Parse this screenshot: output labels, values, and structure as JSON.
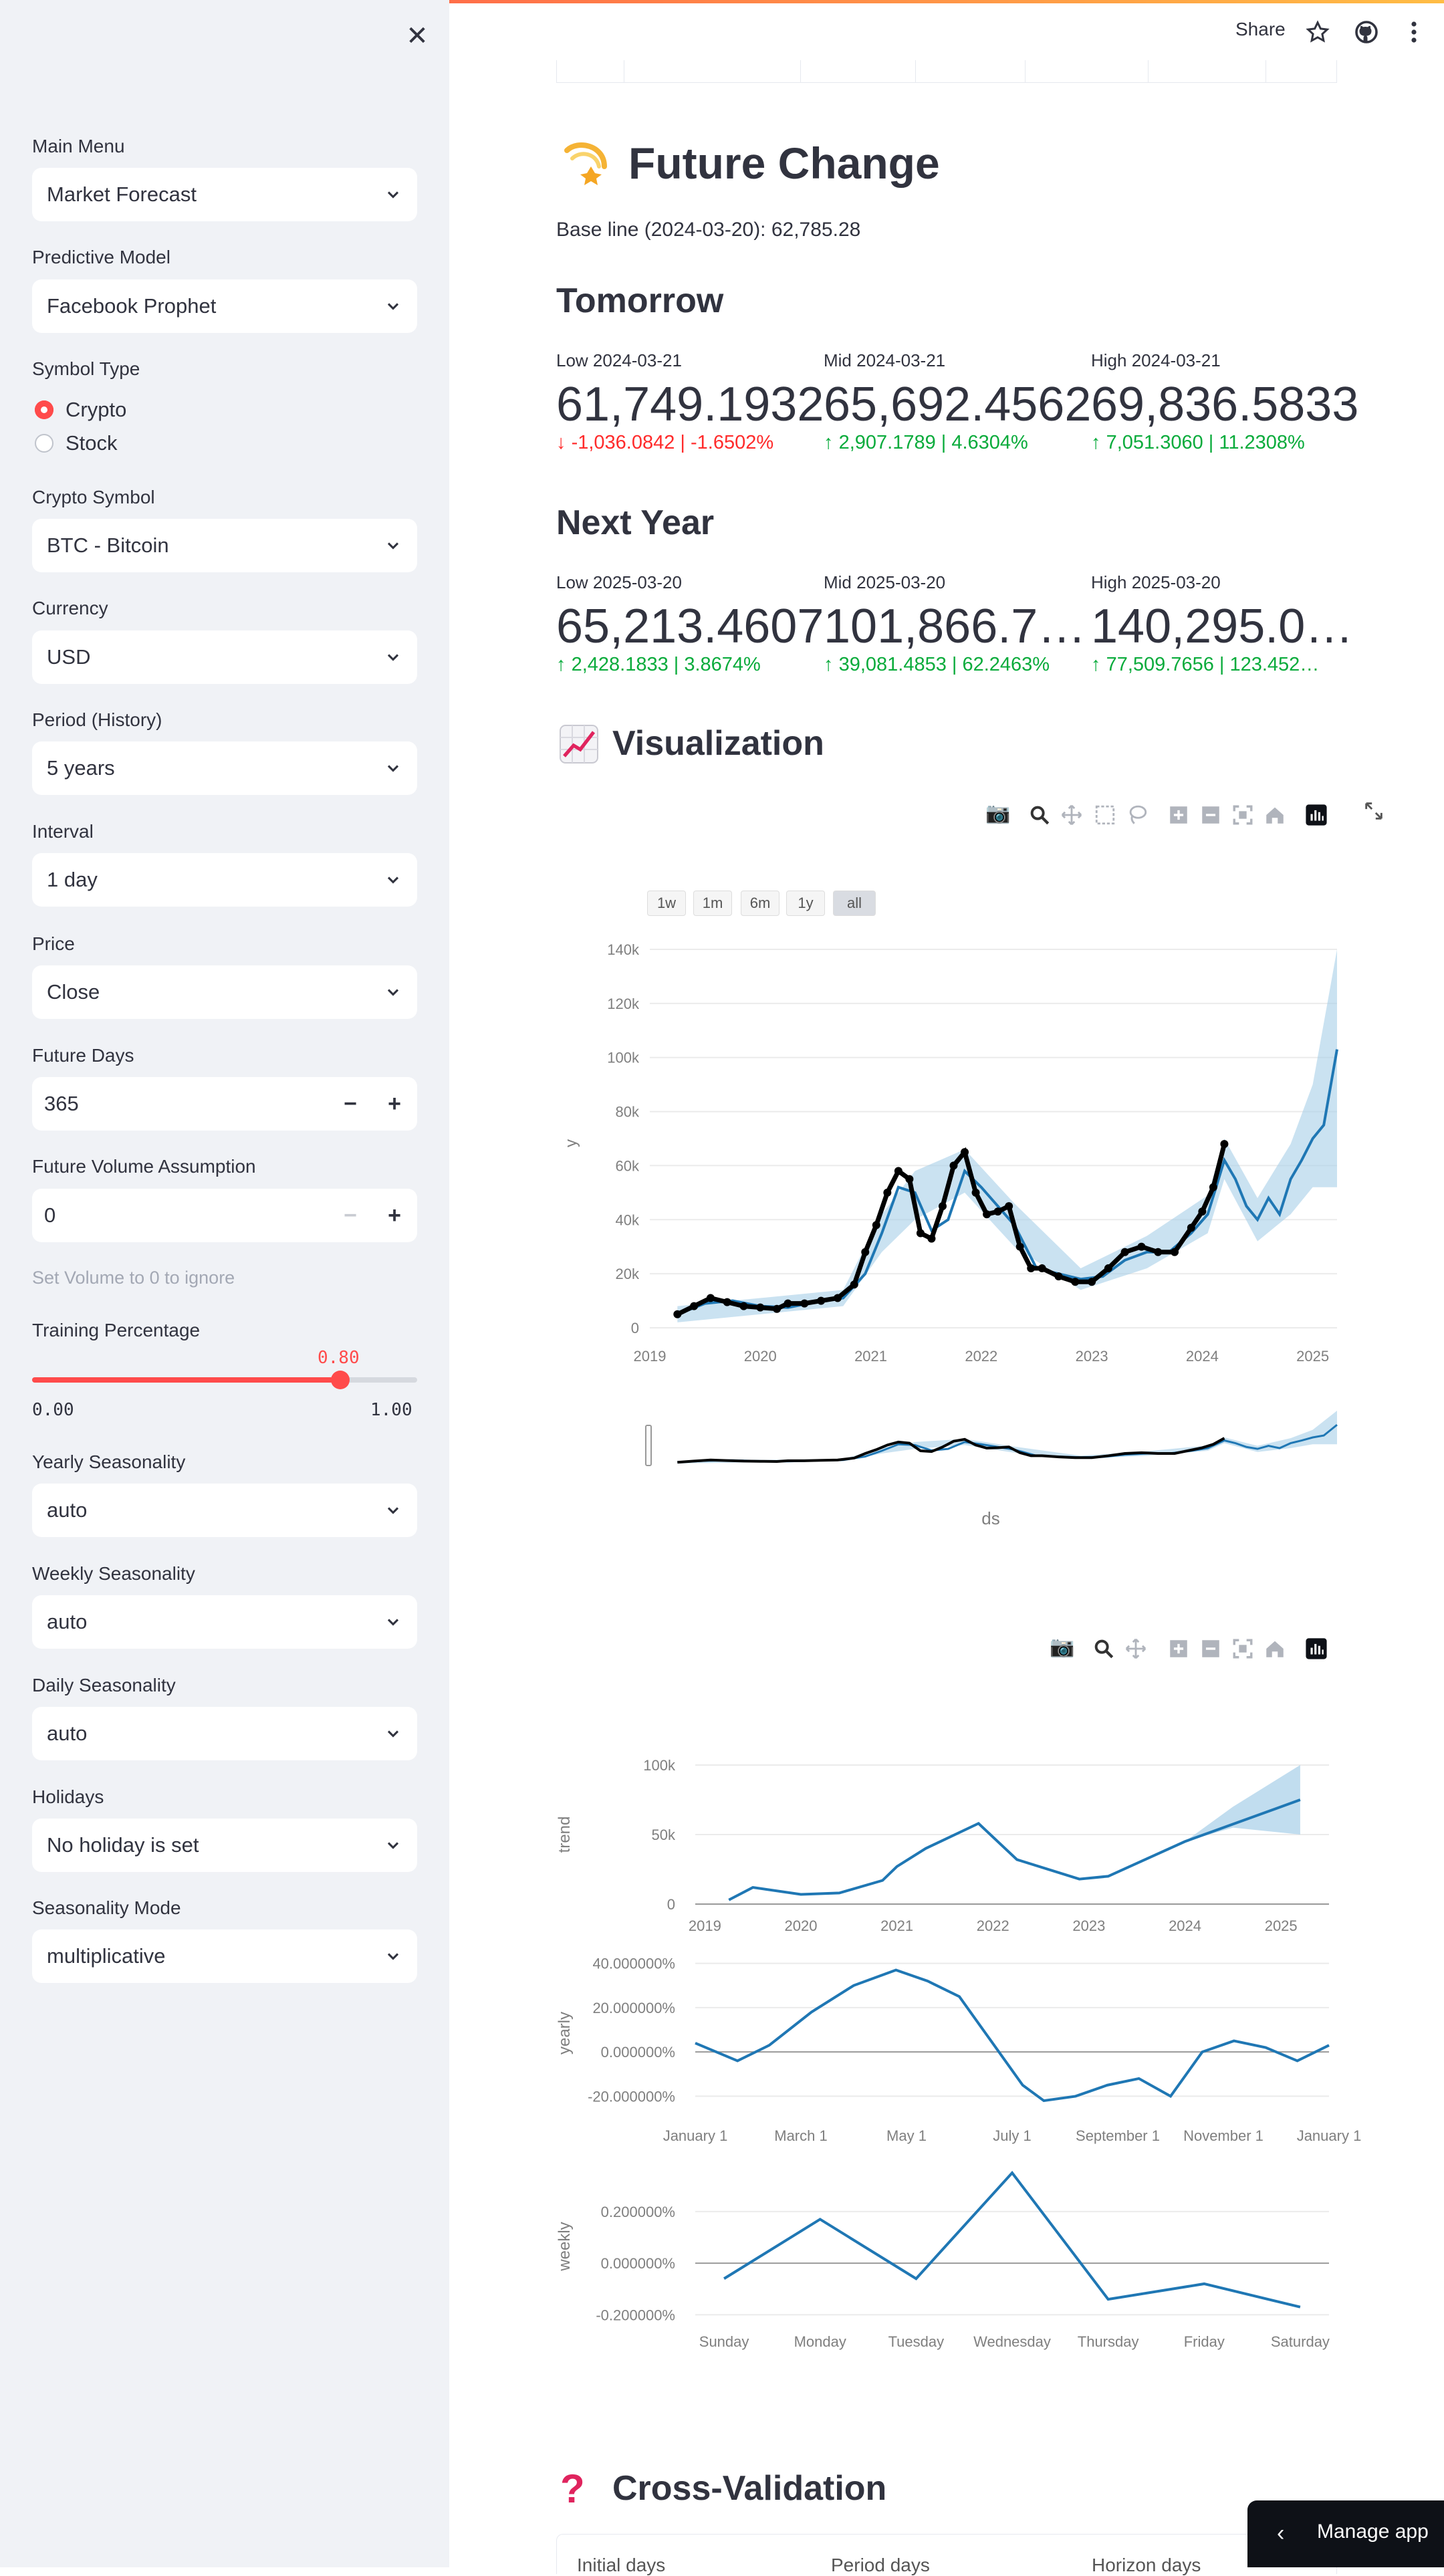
{
  "header": {
    "share_label": "Share"
  },
  "sidebar": {
    "main_menu": {
      "label": "Main Menu",
      "value": "Market Forecast"
    },
    "predictive_model": {
      "label": "Predictive Model",
      "value": "Facebook Prophet"
    },
    "symbol_type": {
      "label": "Symbol Type",
      "options": [
        "Crypto",
        "Stock"
      ],
      "selected": "Crypto"
    },
    "crypto_symbol": {
      "label": "Crypto Symbol",
      "value": "BTC - Bitcoin"
    },
    "currency": {
      "label": "Currency",
      "value": "USD"
    },
    "period": {
      "label": "Period (History)",
      "value": "5 years"
    },
    "interval": {
      "label": "Interval",
      "value": "1 day"
    },
    "price": {
      "label": "Price",
      "value": "Close"
    },
    "future_days": {
      "label": "Future Days",
      "value": "365"
    },
    "future_volume": {
      "label": "Future Volume Assumption",
      "value": "0",
      "hint": "Set Volume to 0 to ignore"
    },
    "training_pct": {
      "label": "Training Percentage",
      "value": "0.80",
      "min": "0.00",
      "max": "1.00",
      "fraction": 0.8
    },
    "yearly_seasonality": {
      "label": "Yearly Seasonality",
      "value": "auto"
    },
    "weekly_seasonality": {
      "label": "Weekly Seasonality",
      "value": "auto"
    },
    "daily_seasonality": {
      "label": "Daily Seasonality",
      "value": "auto"
    },
    "holidays": {
      "label": "Holidays",
      "value": "No holiday is set"
    },
    "seasonality_mode": {
      "label": "Seasonality Mode",
      "value": "multiplicative"
    }
  },
  "future_change": {
    "title": "Future Change",
    "baseline": "Base line (2024-03-20): 62,785.28",
    "tomorrow": {
      "title": "Tomorrow",
      "metrics": [
        {
          "label": "Low 2024-03-21",
          "value": "61,749.1932",
          "delta": "-1,036.0842 | -1.6502%",
          "direction": "down"
        },
        {
          "label": "Mid 2024-03-21",
          "value": "65,692.4562",
          "delta": "2,907.1789 | 4.6304%",
          "direction": "up"
        },
        {
          "label": "High 2024-03-21",
          "value": "69,836.5833",
          "delta": "7,051.3060 | 11.2308%",
          "direction": "up"
        }
      ]
    },
    "next_year": {
      "title": "Next Year",
      "metrics": [
        {
          "label": "Low 2025-03-20",
          "value": "65,213.4607",
          "delta": "2,428.1833 | 3.8674%",
          "direction": "up"
        },
        {
          "label": "Mid 2025-03-20",
          "value": "101,866.7…",
          "delta": "39,081.4853 | 62.2463%",
          "direction": "up"
        },
        {
          "label": "High 2025-03-20",
          "value": "140,295.0…",
          "delta": "77,509.7656 | 123.452…",
          "direction": "up"
        }
      ]
    }
  },
  "visualization": {
    "title": "Visualization"
  },
  "cross_validation": {
    "title": "Cross-Validation",
    "columns": [
      "Initial days",
      "Period days",
      "Horizon days"
    ]
  },
  "manage_app": {
    "label": "Manage app"
  },
  "colors": {
    "accent": "#ff4b4b",
    "up": "#09ab3b",
    "down": "#ff2b2b",
    "series": "#1f77b4",
    "band": "#a6cfe8",
    "actual": "#000000"
  },
  "chart_data": [
    {
      "type": "line",
      "title": "",
      "xlabel": "ds",
      "ylabel": "y",
      "range_buttons": [
        "1w",
        "1m",
        "6m",
        "1y",
        "all"
      ],
      "range_selected": "all",
      "x_ticks": [
        "2019",
        "2020",
        "2021",
        "2022",
        "2023",
        "2024",
        "2025"
      ],
      "y_ticks": [
        "0",
        "20k",
        "40k",
        "60k",
        "80k",
        "100k",
        "120k",
        "140k"
      ],
      "ylim": [
        0,
        140000
      ],
      "xlim": [
        2019.0,
        2025.22
      ],
      "series": [
        {
          "name": "",
          "kind": "actual_points",
          "x": [
            2019.25,
            2019.4,
            2019.55,
            2019.7,
            2019.85,
            2020.0,
            2020.15,
            2020.25,
            2020.4,
            2020.55,
            2020.7,
            2020.85,
            2020.95,
            2021.05,
            2021.15,
            2021.25,
            2021.35,
            2021.45,
            2021.55,
            2021.65,
            2021.75,
            2021.85,
            2021.95,
            2022.05,
            2022.15,
            2022.25,
            2022.35,
            2022.45,
            2022.55,
            2022.7,
            2022.85,
            2023.0,
            2023.15,
            2023.3,
            2023.45,
            2023.6,
            2023.75,
            2023.9,
            2024.0,
            2024.1,
            2024.2
          ],
          "y": [
            5000,
            8000,
            11000,
            9500,
            8000,
            7500,
            7000,
            9000,
            9000,
            10000,
            11000,
            16000,
            28000,
            38000,
            50000,
            58000,
            55000,
            35000,
            33000,
            45000,
            60000,
            65000,
            50000,
            42000,
            43000,
            45000,
            30000,
            22000,
            22000,
            19000,
            17000,
            17000,
            22000,
            28000,
            30000,
            28000,
            28000,
            37000,
            43000,
            52000,
            68000
          ]
        },
        {
          "name": "",
          "kind": "forecast_mid",
          "x": [
            2019.25,
            2019.5,
            2019.75,
            2020.0,
            2020.25,
            2020.5,
            2020.75,
            2020.95,
            2021.1,
            2021.25,
            2021.4,
            2021.55,
            2021.7,
            2021.85,
            2022.0,
            2022.15,
            2022.3,
            2022.5,
            2022.7,
            2022.9,
            2023.1,
            2023.3,
            2023.5,
            2023.7,
            2023.9,
            2024.05,
            2024.2,
            2024.3,
            2024.4,
            2024.5,
            2024.6,
            2024.7,
            2024.8,
            2024.9,
            2025.0,
            2025.1,
            2025.22
          ],
          "y": [
            5000,
            9000,
            10000,
            8000,
            7500,
            9500,
            11000,
            20000,
            35000,
            52000,
            50000,
            36000,
            40000,
            58000,
            52000,
            45000,
            38000,
            22000,
            20000,
            18000,
            19000,
            25000,
            28000,
            28000,
            35000,
            42000,
            62000,
            55000,
            45000,
            40000,
            48000,
            42000,
            55000,
            62000,
            70000,
            75000,
            103000
          ]
        },
        {
          "name": "",
          "kind": "forecast_band",
          "x": [
            2019.25,
            2020.0,
            2020.75,
            2021.1,
            2021.4,
            2021.85,
            2022.3,
            2022.9,
            2023.5,
            2024.05,
            2024.2,
            2024.5,
            2024.8,
            2025.0,
            2025.22
          ],
          "lower": [
            2000,
            5000,
            8000,
            28000,
            40000,
            50000,
            30000,
            14000,
            22000,
            35000,
            55000,
            32000,
            42000,
            52000,
            52000
          ],
          "upper": [
            8000,
            11000,
            14000,
            42000,
            58000,
            66000,
            46000,
            22000,
            34000,
            49000,
            70000,
            48000,
            68000,
            90000,
            140000
          ]
        }
      ]
    },
    {
      "type": "line",
      "title": "",
      "ylabel": "trend",
      "x_ticks": [
        "2019",
        "2020",
        "2021",
        "2022",
        "2023",
        "2024",
        "2025"
      ],
      "y_ticks": [
        "0",
        "50k",
        "100k"
      ],
      "ylim": [
        0,
        100000
      ],
      "series": [
        {
          "name": "",
          "x": [
            2019.25,
            2019.5,
            2020.0,
            2020.4,
            2020.85,
            2021.0,
            2021.3,
            2021.85,
            2022.25,
            2022.9,
            2023.2,
            2024.0,
            2025.2
          ],
          "y": [
            3000,
            12000,
            7000,
            8000,
            17000,
            27000,
            40000,
            58000,
            32000,
            18000,
            20000,
            45000,
            75000
          ]
        },
        {
          "name": "",
          "kind": "band",
          "x": [
            2024.0,
            2024.5,
            2025.2
          ],
          "lower": [
            45000,
            55000,
            50000
          ],
          "upper": [
            45000,
            70000,
            100000
          ]
        }
      ]
    },
    {
      "type": "line",
      "title": "",
      "ylabel": "yearly",
      "x_ticks": [
        "January 1",
        "March 1",
        "May 1",
        "July 1",
        "September 1",
        "November 1",
        "January 1"
      ],
      "y_ticks": [
        "-20.000000%",
        "0.000000%",
        "20.000000%",
        "40.000000%"
      ],
      "ylim": [
        -25,
        42
      ],
      "series": [
        {
          "name": "",
          "x": [
            0,
            0.4,
            0.7,
            1.1,
            1.5,
            1.9,
            2.2,
            2.5,
            2.8,
            3.1,
            3.3,
            3.6,
            3.9,
            4.2,
            4.5,
            4.8,
            5.1,
            5.4,
            5.7,
            6.0
          ],
          "y": [
            4,
            -4,
            3,
            18,
            30,
            37,
            32,
            25,
            5,
            -15,
            -22,
            -20,
            -15,
            -12,
            -20,
            0,
            5,
            2,
            -4,
            3
          ]
        }
      ]
    },
    {
      "type": "line",
      "title": "",
      "ylabel": "weekly",
      "x_ticks": [
        "Sunday",
        "Monday",
        "Tuesday",
        "Wednesday",
        "Thursday",
        "Friday",
        "Saturday"
      ],
      "y_ticks": [
        "-0.200000%",
        "0.000000%",
        "0.200000%"
      ],
      "ylim": [
        -0.22,
        0.35
      ],
      "series": [
        {
          "name": "",
          "x": [
            0,
            1,
            2,
            3,
            4,
            5,
            6
          ],
          "y": [
            -0.06,
            0.17,
            -0.06,
            0.35,
            -0.14,
            -0.08,
            -0.17
          ]
        }
      ]
    }
  ]
}
